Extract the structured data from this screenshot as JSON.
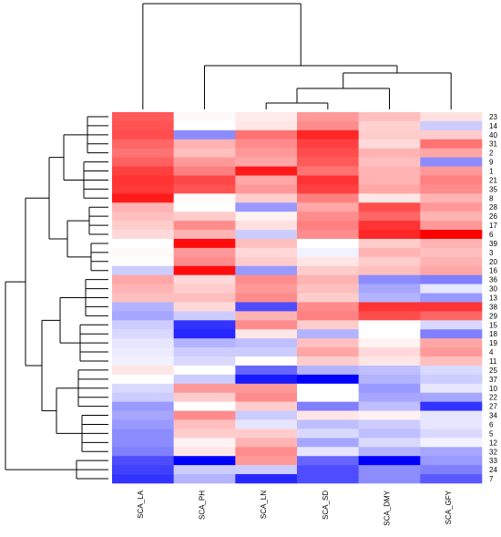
{
  "chart_data": {
    "type": "heatmap",
    "title": "",
    "xlabel": "",
    "ylabel": "",
    "columns": [
      "SCA_LA",
      "SCA_PH",
      "SCA_LN",
      "SCA_SD",
      "SCA_DMY",
      "SCA_GFY"
    ],
    "rows": [
      "23",
      "14",
      "40",
      "31",
      "2",
      "9",
      "1",
      "21",
      "35",
      "8",
      "28",
      "26",
      "17",
      "6",
      "39",
      "3",
      "20",
      "16",
      "36",
      "30",
      "13",
      "38",
      "29",
      "15",
      "18",
      "19",
      "4",
      "11",
      "25",
      "37",
      "10",
      "22",
      "27",
      "34",
      "6",
      "5",
      "12",
      "32",
      "33",
      "24",
      "7"
    ],
    "color_scale": {
      "min": -1,
      "max": 1,
      "low_color": "#0000ff",
      "mid_color": "#ffffff",
      "high_color": "#ff0000"
    },
    "values": [
      [
        0.65,
        0.02,
        0.08,
        0.4,
        0.25,
        0.12
      ],
      [
        0.68,
        0.0,
        0.1,
        0.45,
        0.18,
        -0.2
      ],
      [
        0.7,
        -0.45,
        0.55,
        0.85,
        0.2,
        0.2
      ],
      [
        0.6,
        0.3,
        0.45,
        0.75,
        0.15,
        0.55
      ],
      [
        0.55,
        0.25,
        0.4,
        0.7,
        0.3,
        0.35
      ],
      [
        0.62,
        0.4,
        0.35,
        0.65,
        0.25,
        -0.45
      ],
      [
        0.75,
        0.5,
        0.9,
        0.55,
        0.3,
        0.4
      ],
      [
        0.8,
        0.72,
        0.35,
        0.8,
        0.3,
        0.5
      ],
      [
        0.78,
        0.68,
        0.4,
        0.75,
        0.35,
        0.45
      ],
      [
        0.9,
        0.02,
        0.2,
        0.5,
        0.1,
        0.3
      ],
      [
        0.3,
        0.0,
        -0.4,
        0.35,
        0.7,
        0.4
      ],
      [
        0.25,
        0.2,
        0.05,
        0.45,
        0.6,
        0.3
      ],
      [
        0.2,
        0.45,
        0.12,
        0.5,
        0.8,
        0.4
      ],
      [
        0.15,
        0.3,
        -0.2,
        0.45,
        0.85,
        1.0
      ],
      [
        0.0,
        0.95,
        0.25,
        0.0,
        0.2,
        0.3
      ],
      [
        0.02,
        0.4,
        0.15,
        -0.05,
        0.3,
        0.25
      ],
      [
        0.0,
        0.45,
        0.2,
        0.1,
        0.2,
        0.3
      ],
      [
        -0.2,
        0.95,
        -0.4,
        0.2,
        0.25,
        0.35
      ],
      [
        0.35,
        0.15,
        0.45,
        0.3,
        -0.45,
        -0.5
      ],
      [
        0.3,
        0.2,
        0.4,
        0.25,
        -0.35,
        -0.1
      ],
      [
        0.25,
        0.25,
        0.45,
        0.2,
        -0.3,
        -0.4
      ],
      [
        -0.3,
        0.15,
        -0.7,
        0.45,
        0.8,
        0.8
      ],
      [
        -0.35,
        -0.2,
        0.3,
        0.5,
        0.7,
        0.6
      ],
      [
        -0.2,
        -0.8,
        0.45,
        0.2,
        0.0,
        -0.15
      ],
      [
        -0.15,
        -0.85,
        0.1,
        -0.3,
        0.0,
        -0.5
      ],
      [
        -0.1,
        -0.3,
        -0.25,
        0.25,
        0.05,
        0.35
      ],
      [
        -0.08,
        -0.2,
        -0.2,
        0.35,
        0.15,
        0.4
      ],
      [
        -0.05,
        -0.15,
        0.0,
        0.2,
        0.1,
        0.25
      ],
      [
        0.1,
        0.0,
        -0.6,
        -0.3,
        -0.25,
        -0.15
      ],
      [
        0.0,
        -0.2,
        -0.9,
        -1.0,
        -0.3,
        -0.2
      ],
      [
        -0.15,
        0.4,
        0.4,
        0.0,
        -0.4,
        -0.1
      ],
      [
        -0.2,
        0.2,
        0.45,
        0.0,
        -0.35,
        -0.35
      ],
      [
        -0.4,
        0.0,
        0.2,
        -0.5,
        -0.25,
        -0.8
      ],
      [
        -0.35,
        0.45,
        -0.2,
        0.1,
        0.05,
        -0.1
      ],
      [
        -0.4,
        0.25,
        -0.1,
        -0.25,
        -0.2,
        -0.1
      ],
      [
        -0.45,
        0.2,
        0.2,
        -0.15,
        -0.25,
        -0.15
      ],
      [
        -0.45,
        0.05,
        0.3,
        -0.35,
        -0.15,
        -0.05
      ],
      [
        -0.5,
        0.1,
        0.45,
        -0.1,
        -0.3,
        -0.35
      ],
      [
        -0.7,
        -1.0,
        0.4,
        -0.6,
        -1.0,
        -0.4
      ],
      [
        -0.75,
        -0.2,
        -0.2,
        -0.7,
        -0.45,
        -0.5
      ],
      [
        -0.8,
        -0.3,
        -0.85,
        -0.7,
        -0.45,
        -0.65
      ]
    ]
  }
}
